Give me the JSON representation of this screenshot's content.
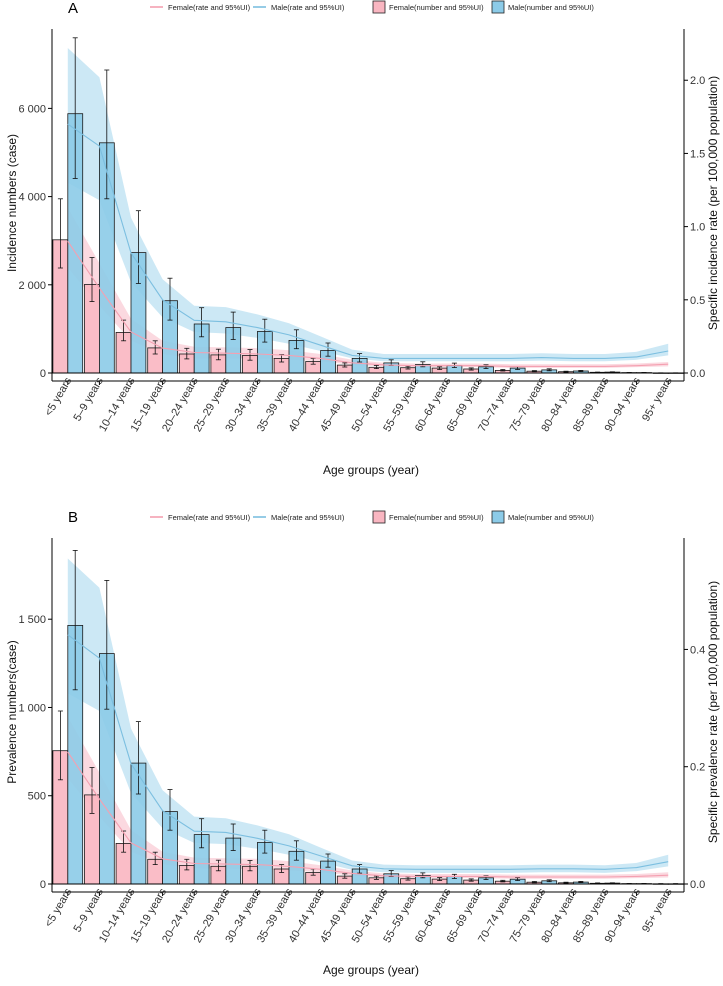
{
  "age_groups": [
    "<5 years",
    "5–9 years",
    "10–14 years",
    "15–19 years",
    "20–24 years",
    "25–29 years",
    "30–34 years",
    "35–39 years",
    "40–44 years",
    "45–49 years",
    "50–54 years",
    "55–59 years",
    "60–64 years",
    "65–69 years",
    "70–74 years",
    "75–79 years",
    "80–84 years",
    "85–89 years",
    "90–94 years",
    "95+ years"
  ],
  "legend": {
    "female_rate": "Female(rate and 95%UI)",
    "male_rate": "Male(rate and 95%UI)",
    "female_number": "Female(number and 95%UI)",
    "male_number": "Male(number and 95%UI)"
  },
  "colors": {
    "female": "#f9b6c1",
    "male": "#8ccbe8",
    "female_band": "#f9c0cb",
    "male_band": "#aad9ef",
    "female_line": "#f4a0b1",
    "male_line": "#7cbfe0"
  },
  "chart_data": [
    {
      "panel": "A",
      "type": "bar",
      "xlabel": "Age groups (year)",
      "ylabel": "Incidence numbers (case)",
      "ylabel_right": "Specific incidence rate (per 100,000 population)",
      "ylim": [
        0,
        7800
      ],
      "yticks": [
        0,
        2000,
        4000,
        6000
      ],
      "ytick_labels": [
        "0",
        "2 000",
        "4 000",
        "6 000"
      ],
      "ylim_right": [
        0,
        2.35
      ],
      "yticks_right": [
        0,
        0.5,
        1,
        1.5,
        2
      ],
      "ytick_labels_right": [
        "0.0",
        "0.5",
        "1.0",
        "1.5",
        "2.0"
      ],
      "series": [
        {
          "name": "Female(number and 95%UI)",
          "values": [
            3020,
            2010,
            920,
            570,
            430,
            410,
            400,
            330,
            260,
            180,
            130,
            120,
            110,
            90,
            60,
            40,
            30,
            15,
            8,
            3
          ],
          "lower": [
            2380,
            1620,
            730,
            430,
            320,
            300,
            290,
            250,
            200,
            135,
            100,
            90,
            80,
            65,
            45,
            30,
            20,
            10,
            5,
            2
          ],
          "upper": [
            3950,
            2620,
            1200,
            730,
            560,
            540,
            530,
            420,
            330,
            230,
            170,
            155,
            140,
            115,
            80,
            55,
            40,
            20,
            12,
            5
          ]
        },
        {
          "name": "Male(number and 95%UI)",
          "values": [
            5880,
            5220,
            2730,
            1640,
            1110,
            1030,
            940,
            740,
            510,
            330,
            230,
            190,
            170,
            140,
            110,
            70,
            45,
            20,
            8,
            3
          ],
          "lower": [
            4410,
            3950,
            2030,
            1200,
            820,
            760,
            700,
            550,
            380,
            250,
            170,
            140,
            125,
            100,
            80,
            50,
            32,
            14,
            5,
            2
          ],
          "upper": [
            7600,
            6870,
            3680,
            2150,
            1480,
            1380,
            1220,
            980,
            680,
            440,
            300,
            255,
            225,
            185,
            145,
            95,
            60,
            28,
            12,
            5
          ]
        },
        {
          "name": "Female(rate and 95%UI)",
          "axis": "right",
          "values": [
            0.9,
            0.58,
            0.28,
            0.17,
            0.14,
            0.135,
            0.13,
            0.12,
            0.1,
            0.07,
            0.055,
            0.05,
            0.05,
            0.05,
            0.045,
            0.045,
            0.045,
            0.045,
            0.05,
            0.06
          ],
          "lower": [
            0.72,
            0.46,
            0.22,
            0.13,
            0.1,
            0.1,
            0.1,
            0.09,
            0.08,
            0.055,
            0.045,
            0.04,
            0.04,
            0.04,
            0.035,
            0.035,
            0.035,
            0.035,
            0.04,
            0.045
          ],
          "upper": [
            1.13,
            0.75,
            0.37,
            0.22,
            0.18,
            0.175,
            0.17,
            0.155,
            0.13,
            0.09,
            0.07,
            0.065,
            0.065,
            0.065,
            0.06,
            0.06,
            0.06,
            0.06,
            0.065,
            0.075
          ]
        },
        {
          "name": "Male(rate and 95%UI)",
          "axis": "right",
          "values": [
            1.7,
            1.55,
            0.82,
            0.5,
            0.36,
            0.35,
            0.31,
            0.26,
            0.19,
            0.12,
            0.1,
            0.1,
            0.1,
            0.1,
            0.1,
            0.105,
            0.1,
            0.1,
            0.11,
            0.15
          ],
          "lower": [
            1.3,
            1.18,
            0.62,
            0.38,
            0.28,
            0.27,
            0.24,
            0.2,
            0.15,
            0.1,
            0.08,
            0.08,
            0.08,
            0.08,
            0.08,
            0.085,
            0.08,
            0.08,
            0.09,
            0.12
          ],
          "upper": [
            2.22,
            2.02,
            1.06,
            0.64,
            0.46,
            0.45,
            0.4,
            0.34,
            0.25,
            0.16,
            0.13,
            0.13,
            0.13,
            0.13,
            0.13,
            0.135,
            0.13,
            0.13,
            0.145,
            0.2
          ]
        }
      ]
    },
    {
      "panel": "B",
      "type": "bar",
      "xlabel": "Age groups (year)",
      "ylabel": "Prevalence numbers(case)",
      "ylabel_right": "Specific prevalence rate (per 100,000 population)",
      "ylim": [
        0,
        1960
      ],
      "yticks": [
        0,
        500,
        1000,
        1500
      ],
      "ytick_labels": [
        "0",
        "500",
        "1 000",
        "1 500"
      ],
      "ylim_right": [
        0,
        0.59
      ],
      "yticks_right": [
        0,
        0.2,
        0.4
      ],
      "ytick_labels_right": [
        "0.0",
        "0.2",
        "0.4"
      ],
      "series": [
        {
          "name": "Female(number and 95%UI)",
          "values": [
            755,
            505,
            230,
            140,
            105,
            100,
            100,
            85,
            65,
            45,
            35,
            30,
            28,
            22,
            16,
            10,
            7,
            4,
            2,
            1
          ],
          "lower": [
            590,
            400,
            180,
            110,
            80,
            75,
            75,
            65,
            50,
            33,
            26,
            22,
            20,
            16,
            12,
            7,
            5,
            3,
            1,
            0
          ],
          "upper": [
            980,
            660,
            300,
            180,
            140,
            135,
            133,
            110,
            85,
            58,
            45,
            40,
            36,
            29,
            21,
            14,
            10,
            6,
            3,
            2
          ]
        },
        {
          "name": "Male(number and 95%UI)",
          "values": [
            1465,
            1305,
            685,
            410,
            280,
            260,
            235,
            185,
            130,
            85,
            58,
            48,
            42,
            35,
            27,
            18,
            11,
            5,
            2,
            1
          ],
          "lower": [
            1100,
            990,
            510,
            305,
            205,
            190,
            175,
            135,
            95,
            62,
            42,
            35,
            31,
            25,
            20,
            13,
            8,
            3,
            1,
            0
          ],
          "upper": [
            1890,
            1720,
            920,
            535,
            370,
            340,
            305,
            245,
            170,
            110,
            76,
            63,
            55,
            46,
            36,
            24,
            15,
            7,
            3,
            2
          ]
        },
        {
          "name": "Female(rate and 95%UI)",
          "axis": "right",
          "values": [
            0.225,
            0.145,
            0.07,
            0.043,
            0.035,
            0.034,
            0.033,
            0.03,
            0.025,
            0.018,
            0.014,
            0.013,
            0.013,
            0.013,
            0.012,
            0.012,
            0.012,
            0.012,
            0.013,
            0.015
          ],
          "lower": [
            0.18,
            0.115,
            0.055,
            0.034,
            0.027,
            0.026,
            0.025,
            0.023,
            0.02,
            0.014,
            0.011,
            0.01,
            0.01,
            0.01,
            0.009,
            0.009,
            0.009,
            0.009,
            0.01,
            0.011
          ],
          "upper": [
            0.285,
            0.19,
            0.092,
            0.055,
            0.045,
            0.044,
            0.043,
            0.039,
            0.032,
            0.023,
            0.018,
            0.017,
            0.017,
            0.017,
            0.016,
            0.016,
            0.016,
            0.016,
            0.017,
            0.02
          ]
        },
        {
          "name": "Male(rate and 95%UI)",
          "axis": "right",
          "values": [
            0.425,
            0.385,
            0.205,
            0.125,
            0.09,
            0.088,
            0.078,
            0.065,
            0.048,
            0.031,
            0.026,
            0.025,
            0.025,
            0.025,
            0.025,
            0.026,
            0.026,
            0.025,
            0.028,
            0.038
          ],
          "lower": [
            0.325,
            0.295,
            0.155,
            0.095,
            0.07,
            0.068,
            0.06,
            0.05,
            0.037,
            0.024,
            0.02,
            0.019,
            0.019,
            0.019,
            0.019,
            0.02,
            0.02,
            0.019,
            0.022,
            0.03
          ],
          "upper": [
            0.555,
            0.505,
            0.265,
            0.16,
            0.115,
            0.112,
            0.1,
            0.085,
            0.062,
            0.04,
            0.033,
            0.032,
            0.032,
            0.032,
            0.032,
            0.033,
            0.033,
            0.032,
            0.036,
            0.05
          ]
        }
      ]
    }
  ]
}
